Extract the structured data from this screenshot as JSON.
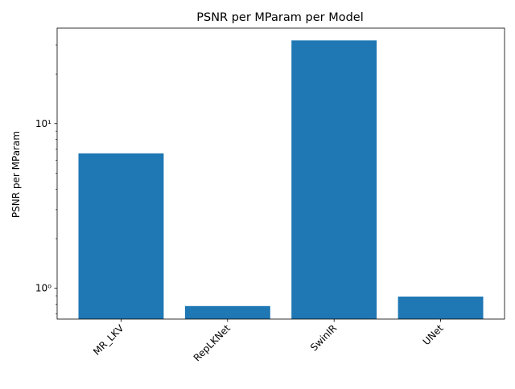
{
  "chart_data": {
    "type": "bar",
    "title": "PSNR per MParam per Model",
    "xlabel": "",
    "ylabel": "PSNR per MParam",
    "y_scale": "log",
    "ylim": [
      0.65,
      38
    ],
    "grid": false,
    "legend": "none",
    "bar_color": "#1f77b4",
    "categories": [
      "MR_LKV",
      "RepLKNet",
      "SwinIR",
      "UNet"
    ],
    "values": [
      6.6,
      0.78,
      32.0,
      0.89
    ],
    "major_ticks": [
      {
        "value": 1,
        "label": "10⁰"
      },
      {
        "value": 10,
        "label": "10¹"
      }
    ],
    "minor_ticks": [
      0.7,
      0.8,
      0.9,
      2,
      3,
      4,
      5,
      6,
      7,
      8,
      9,
      20,
      30
    ]
  }
}
